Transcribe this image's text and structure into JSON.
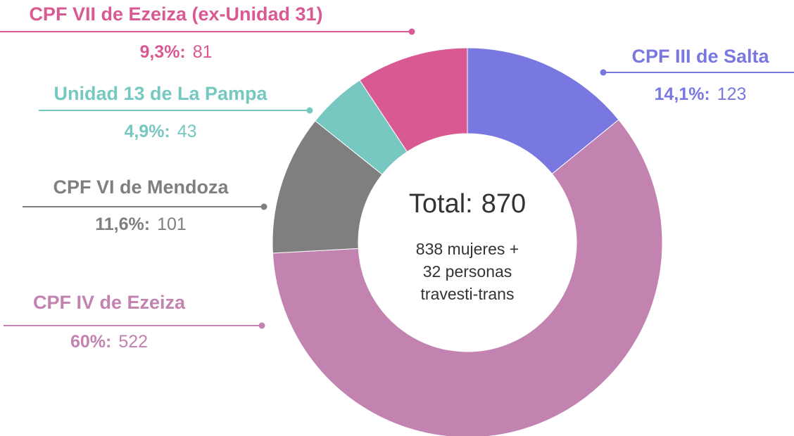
{
  "chart_data": {
    "type": "donut",
    "categories": [
      "CPF III de Salta",
      "CPF IV de Ezeiza",
      "CPF VI de Mendoza",
      "Unidad 13 de La Pampa",
      "CPF VII de Ezeiza (ex-Unidad 31)"
    ],
    "values": [
      123,
      522,
      101,
      43,
      81
    ],
    "percent_labels": [
      "14,1%:",
      "60%:",
      "11,6%:",
      "4,9%:",
      "9,3%:"
    ],
    "colors": [
      "#7878e0",
      "#c283b0",
      "#7f7f7f",
      "#76c8c0",
      "#d95a93"
    ],
    "center_label": "Total:",
    "total": 870,
    "center_note": [
      "838 mujeres +",
      "32 personas",
      "travesti-trans"
    ]
  }
}
